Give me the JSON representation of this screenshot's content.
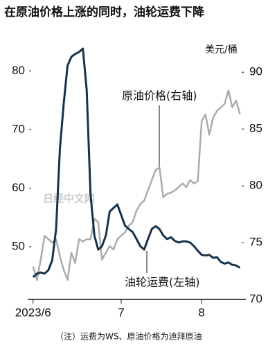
{
  "chart_data": {
    "type": "line",
    "title": "在原油价格上涨的同时，油轮运费下降",
    "y2_unit": "美元/桶",
    "annotations": [
      "原油价格(右轴)",
      "油轮运费(左轴)"
    ],
    "note": "（注）运费为WS、原油价格为迪拜原油",
    "watermark": "日经中文网",
    "x": [
      0,
      1,
      2,
      3,
      4,
      5,
      6,
      7,
      8,
      9,
      10,
      11,
      12,
      13,
      14,
      15,
      16,
      17,
      18,
      19,
      20,
      21,
      22,
      23,
      24,
      25,
      26,
      27,
      28,
      29,
      30,
      31,
      32,
      33,
      34,
      35,
      36,
      37,
      38,
      39,
      40,
      41,
      42,
      43,
      44,
      45,
      46,
      47,
      48,
      49,
      50,
      51,
      52,
      53,
      54
    ],
    "xlim": [
      -0.5,
      55
    ],
    "xticks": [
      {
        "value": 0,
        "label": "2023/6"
      },
      {
        "value": 23,
        "label": "7"
      },
      {
        "value": 44,
        "label": "8"
      }
    ],
    "ylim": [
      41,
      85
    ],
    "yticks": [
      50,
      60,
      70,
      80
    ],
    "y2lim": [
      70,
      92.7
    ],
    "y2ticks": [
      70,
      75,
      80,
      85,
      90
    ],
    "series": [
      {
        "name": "油轮运费(左轴)",
        "color": "#16324a",
        "axis": "y",
        "values": [
          44.8,
          45.4,
          45.6,
          45.4,
          46.0,
          47.7,
          53,
          66.7,
          74.4,
          80.9,
          82.4,
          82.9,
          83.2,
          83.8,
          76.7,
          59,
          51.9,
          49.5,
          50.1,
          51.9,
          56,
          56.6,
          57.2,
          55.4,
          53.6,
          53,
          52.5,
          51.3,
          50.1,
          49.5,
          51.3,
          53,
          53.5,
          53,
          51.9,
          51.3,
          51.6,
          51,
          50.7,
          50.9,
          50.9,
          50.7,
          50.1,
          49.3,
          48.6,
          48.5,
          48.6,
          48.1,
          48.2,
          47.4,
          47.1,
          47.3,
          46.9,
          46.8,
          46.4
        ]
      },
      {
        "name": "原油价格(右轴)",
        "color": "#ababab",
        "axis": "y2",
        "values": [
          72.9,
          71.7,
          73.5,
          75.6,
          75.3,
          75,
          75.3,
          73.8,
          72.6,
          71.7,
          74.1,
          73.2,
          75.3,
          75.1,
          75.3,
          75.3,
          77.1,
          76.8,
          73.5,
          74.1,
          74.7,
          74.4,
          75.3,
          75.6,
          75.9,
          76.5,
          76.8,
          77.8,
          78.4,
          78.7,
          79.6,
          80.5,
          81.4,
          81.6,
          79,
          79.3,
          79.4,
          79.6,
          79.9,
          80.2,
          79.9,
          80.5,
          80.2,
          80.4,
          85.7,
          86.3,
          84.5,
          86,
          86.6,
          86.9,
          87.2,
          88.4,
          86.9,
          87.5,
          86.3
        ]
      }
    ]
  }
}
